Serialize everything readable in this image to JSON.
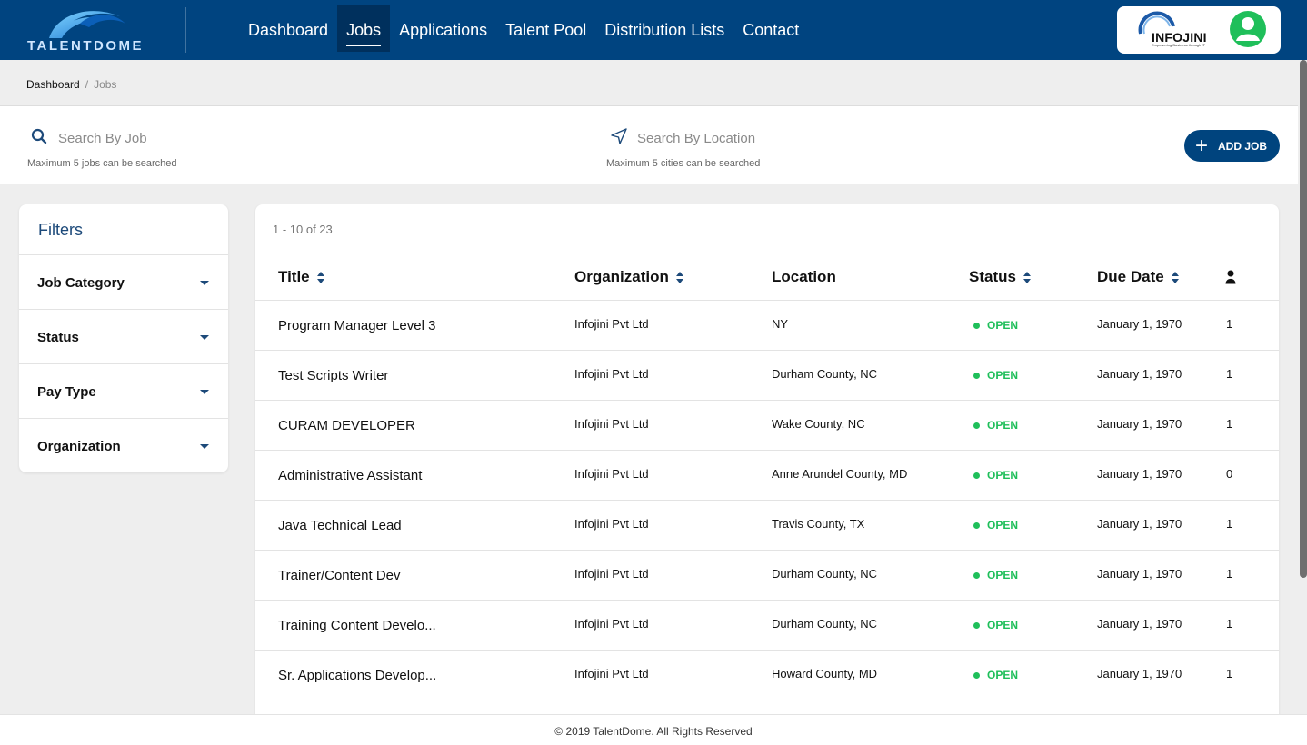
{
  "header": {
    "logo_text": "TALENTDOME",
    "nav": [
      {
        "label": "Dashboard",
        "active": false
      },
      {
        "label": "Jobs",
        "active": true
      },
      {
        "label": "Applications",
        "active": false
      },
      {
        "label": "Talent Pool",
        "active": false
      },
      {
        "label": "Distribution Lists",
        "active": false
      },
      {
        "label": "Contact",
        "active": false
      }
    ],
    "company_logo_text": "INFOJINI",
    "company_tagline": "Empowering Business through IT",
    "avatar_icon": "user-icon",
    "brand_color": "#004480",
    "avatar_color": "#1fbf5a"
  },
  "breadcrumb": {
    "home": "Dashboard",
    "separator": "/",
    "current": "Jobs"
  },
  "search": {
    "job_placeholder": "Search By Job",
    "job_value": "",
    "job_hint": "Maximum 5 jobs can be searched",
    "location_placeholder": "Search By Location",
    "location_value": "",
    "location_hint": "Maximum 5 cities can be searched",
    "add_job_label": "ADD JOB"
  },
  "filters": {
    "title": "Filters",
    "items": [
      {
        "label": "Job Category"
      },
      {
        "label": "Status"
      },
      {
        "label": "Pay Type"
      },
      {
        "label": "Organization"
      }
    ]
  },
  "jobs": {
    "count_text": "1 - 10 of 23",
    "columns": {
      "title": "Title",
      "organization": "Organization",
      "location": "Location",
      "status": "Status",
      "due_date": "Due Date",
      "applicants_icon": "person-icon"
    },
    "status_color": "#1fbf5a",
    "rows": [
      {
        "title": "Program Manager Level 3",
        "organization": "Infojini Pvt Ltd",
        "location": "NY",
        "status": "OPEN",
        "due_date": "January 1, 1970",
        "count": "1"
      },
      {
        "title": "Test Scripts Writer",
        "organization": "Infojini Pvt Ltd",
        "location": "Durham County, NC",
        "status": "OPEN",
        "due_date": "January 1, 1970",
        "count": "1"
      },
      {
        "title": "CURAM DEVELOPER",
        "organization": "Infojini Pvt Ltd",
        "location": "Wake County, NC",
        "status": "OPEN",
        "due_date": "January 1, 1970",
        "count": "1"
      },
      {
        "title": "Administrative Assistant",
        "organization": "Infojini Pvt Ltd",
        "location": "Anne Arundel County, MD",
        "status": "OPEN",
        "due_date": "January 1, 1970",
        "count": "0"
      },
      {
        "title": "Java Technical Lead",
        "organization": "Infojini Pvt Ltd",
        "location": "Travis County, TX",
        "status": "OPEN",
        "due_date": "January 1, 1970",
        "count": "1"
      },
      {
        "title": "Trainer/Content Dev",
        "organization": "Infojini Pvt Ltd",
        "location": "Durham County, NC",
        "status": "OPEN",
        "due_date": "January 1, 1970",
        "count": "1"
      },
      {
        "title": "Training Content Develo...",
        "organization": "Infojini Pvt Ltd",
        "location": "Durham County, NC",
        "status": "OPEN",
        "due_date": "January 1, 1970",
        "count": "1"
      },
      {
        "title": "Sr. Applications Develop...",
        "organization": "Infojini Pvt Ltd",
        "location": "Howard County, MD",
        "status": "OPEN",
        "due_date": "January 1, 1970",
        "count": "1"
      }
    ]
  },
  "footer": {
    "text": "© 2019 TalentDome. All Rights Reserved"
  }
}
